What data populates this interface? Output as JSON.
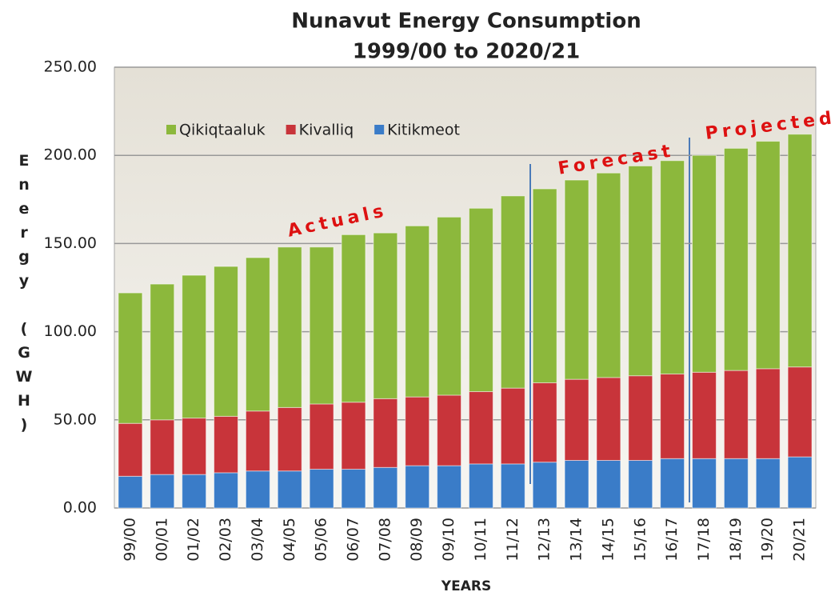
{
  "chart_data": {
    "type": "stacked_bar",
    "title": "Nunavut Energy Consumption",
    "subtitle": "1999/00 to 2020/21",
    "x_label": "YEARS",
    "y_label": "Energy (GWH)",
    "categories": [
      "99/00",
      "00/01",
      "01/02",
      "02/03",
      "03/04",
      "04/05",
      "05/06",
      "06/07",
      "07/08",
      "08/09",
      "09/10",
      "10/11",
      "11/12",
      "12/13",
      "13/14",
      "14/15",
      "15/16",
      "16/17",
      "17/18",
      "18/19",
      "19/20",
      "20/21"
    ],
    "series": [
      {
        "name": "Kitikmeot",
        "color": "#3a7cc8",
        "values": [
          18,
          19,
          19,
          20,
          21,
          21,
          22,
          22,
          23,
          24,
          24,
          25,
          25,
          26,
          27,
          27,
          27,
          28,
          28,
          28,
          28,
          29
        ]
      },
      {
        "name": "Kivalliq",
        "color": "#c8343a",
        "values": [
          30,
          31,
          32,
          32,
          34,
          36,
          37,
          38,
          39,
          39,
          40,
          41,
          43,
          45,
          46,
          47,
          48,
          48,
          49,
          50,
          51,
          51
        ]
      },
      {
        "name": "Qikiqtaaluk",
        "color": "#8cb83c",
        "values": [
          74,
          77,
          81,
          85,
          87,
          91,
          89,
          95,
          94,
          97,
          101,
          104,
          109,
          110,
          113,
          116,
          119,
          121,
          123,
          126,
          129,
          132
        ]
      }
    ],
    "legend_order": [
      2,
      1,
      0
    ],
    "legend": "upper left",
    "grid": true,
    "ylim": [
      0,
      250
    ],
    "yticks": [
      {
        "value": 0,
        "label": "0.00"
      },
      {
        "value": 50,
        "label": "50.00"
      },
      {
        "value": 100,
        "label": "100.00"
      },
      {
        "value": 150,
        "label": "150.00"
      },
      {
        "value": 200,
        "label": "200.00"
      },
      {
        "value": 250,
        "label": "250.00"
      }
    ],
    "annotations": [
      "Actuals",
      "Forecast",
      "Projected"
    ]
  }
}
